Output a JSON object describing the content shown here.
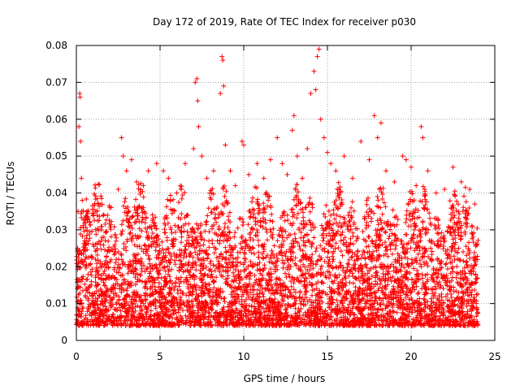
{
  "chart_data": {
    "type": "scatter",
    "title": "Day 172 of 2019, Rate Of TEC Index for receiver p030",
    "xlabel": "GPS time / hours",
    "ylabel": "ROTI / TECUs",
    "xlim": [
      0,
      25
    ],
    "ylim": [
      0,
      0.08
    ],
    "x_ticks": [
      0,
      5,
      10,
      15,
      20,
      25
    ],
    "x_tick_labels": [
      "0",
      "5",
      "10",
      "15",
      "20",
      "25"
    ],
    "y_ticks": [
      0,
      0.01,
      0.02,
      0.03,
      0.04,
      0.05,
      0.06,
      0.07,
      0.08
    ],
    "y_tick_labels": [
      "0",
      "0.01",
      "0.02",
      "0.03",
      "0.04",
      "0.05",
      "0.06",
      "0.07",
      "0.08"
    ],
    "grid": true,
    "marker": "+",
    "colors": {
      "series": "#ff0000",
      "grid": "#a0a0a0",
      "axes": "#000000"
    },
    "series": [
      {
        "name": "ROTI",
        "points": [
          [
            0.1,
            0.035
          ],
          [
            0.15,
            0.058
          ],
          [
            0.2,
            0.067
          ],
          [
            0.22,
            0.066
          ],
          [
            0.25,
            0.054
          ],
          [
            0.3,
            0.044
          ],
          [
            0.35,
            0.038
          ],
          [
            0.5,
            0.033
          ],
          [
            1.0,
            0.034
          ],
          [
            1.5,
            0.03
          ],
          [
            2.0,
            0.036
          ],
          [
            2.5,
            0.041
          ],
          [
            2.7,
            0.055
          ],
          [
            2.8,
            0.05
          ],
          [
            3.0,
            0.046
          ],
          [
            3.3,
            0.049
          ],
          [
            3.6,
            0.043
          ],
          [
            4.0,
            0.042
          ],
          [
            4.3,
            0.046
          ],
          [
            4.8,
            0.048
          ],
          [
            5.2,
            0.046
          ],
          [
            5.5,
            0.044
          ],
          [
            6.0,
            0.04
          ],
          [
            6.5,
            0.048
          ],
          [
            7.0,
            0.052
          ],
          [
            7.1,
            0.07
          ],
          [
            7.2,
            0.071
          ],
          [
            7.25,
            0.065
          ],
          [
            7.3,
            0.058
          ],
          [
            7.5,
            0.05
          ],
          [
            7.8,
            0.044
          ],
          [
            8.2,
            0.046
          ],
          [
            8.6,
            0.067
          ],
          [
            8.7,
            0.077
          ],
          [
            8.75,
            0.076
          ],
          [
            8.8,
            0.069
          ],
          [
            8.9,
            0.053
          ],
          [
            9.2,
            0.046
          ],
          [
            9.5,
            0.042
          ],
          [
            9.9,
            0.054
          ],
          [
            10.0,
            0.053
          ],
          [
            10.3,
            0.045
          ],
          [
            10.8,
            0.048
          ],
          [
            11.2,
            0.044
          ],
          [
            11.6,
            0.049
          ],
          [
            12.0,
            0.055
          ],
          [
            12.3,
            0.048
          ],
          [
            12.6,
            0.045
          ],
          [
            12.9,
            0.057
          ],
          [
            13.0,
            0.061
          ],
          [
            13.2,
            0.05
          ],
          [
            13.5,
            0.044
          ],
          [
            13.8,
            0.052
          ],
          [
            14.0,
            0.067
          ],
          [
            14.2,
            0.073
          ],
          [
            14.3,
            0.068
          ],
          [
            14.4,
            0.077
          ],
          [
            14.5,
            0.079
          ],
          [
            14.6,
            0.06
          ],
          [
            14.8,
            0.055
          ],
          [
            15.0,
            0.051
          ],
          [
            15.2,
            0.048
          ],
          [
            15.5,
            0.046
          ],
          [
            16.0,
            0.05
          ],
          [
            16.5,
            0.044
          ],
          [
            17.0,
            0.054
          ],
          [
            17.5,
            0.049
          ],
          [
            17.8,
            0.061
          ],
          [
            18.0,
            0.055
          ],
          [
            18.2,
            0.059
          ],
          [
            18.5,
            0.046
          ],
          [
            19.0,
            0.043
          ],
          [
            19.5,
            0.05
          ],
          [
            19.7,
            0.049
          ],
          [
            20.0,
            0.047
          ],
          [
            20.3,
            0.042
          ],
          [
            20.6,
            0.058
          ],
          [
            20.7,
            0.055
          ],
          [
            21.0,
            0.046
          ],
          [
            21.5,
            0.04
          ],
          [
            22.0,
            0.041
          ],
          [
            22.5,
            0.047
          ],
          [
            23.0,
            0.043
          ],
          [
            23.5,
            0.041
          ],
          [
            23.8,
            0.037
          ]
        ]
      }
    ]
  }
}
